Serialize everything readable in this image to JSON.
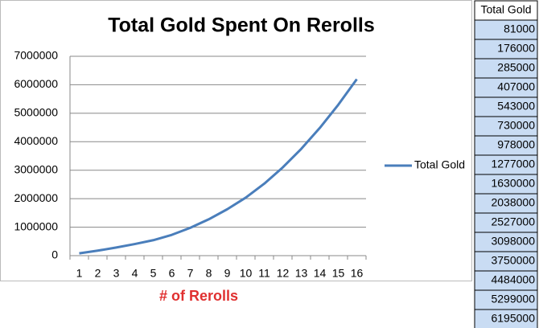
{
  "chart_data": {
    "type": "line",
    "title": "Total Gold Spent On Rerolls",
    "x_label": "# of Rerolls",
    "categories": [
      1,
      2,
      3,
      4,
      5,
      6,
      7,
      8,
      9,
      10,
      11,
      12,
      13,
      14,
      15,
      16
    ],
    "series": [
      {
        "name": "Total Gold",
        "color": "#4a7ebb",
        "values": [
          81000,
          176000,
          285000,
          407000,
          543000,
          730000,
          978000,
          1277000,
          1630000,
          2038000,
          2527000,
          3098000,
          3750000,
          4484000,
          5299000,
          6195000
        ]
      }
    ],
    "ylim": [
      0,
      7000000
    ],
    "yticks": [
      0,
      1000000,
      2000000,
      3000000,
      4000000,
      5000000,
      6000000,
      7000000
    ],
    "grid": true,
    "legend": "right"
  }
}
